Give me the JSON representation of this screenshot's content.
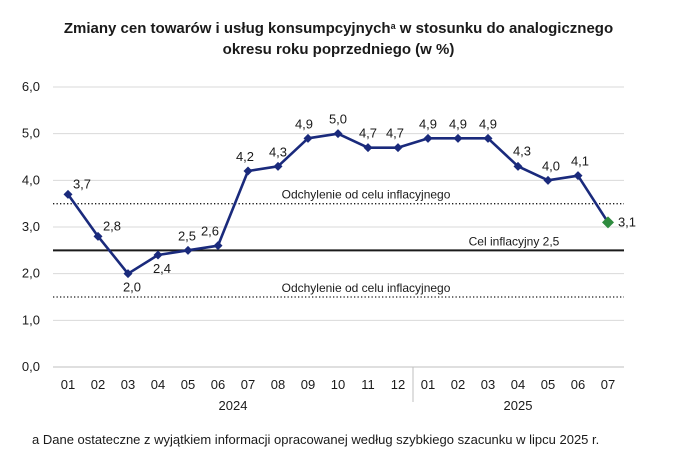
{
  "chart_data": {
    "type": "line",
    "title_main": "Zmiany cen towarów i usług konsumpcyjnych",
    "title_sup": "a",
    "title_rest": " w stosunku do analogicznego",
    "title_line2": "okresu roku poprzedniego (w %)",
    "footnote": "a Dane ostateczne z wyjątkiem informacji opracowanej według szybkiego szacunku w lipcu 2025 r.",
    "categories": [
      "01",
      "02",
      "03",
      "04",
      "05",
      "06",
      "07",
      "08",
      "09",
      "10",
      "11",
      "12",
      "01",
      "02",
      "03",
      "04",
      "05",
      "06",
      "07"
    ],
    "year_groups": [
      {
        "label": "2024",
        "start": 0,
        "end": 11
      },
      {
        "label": "2025",
        "start": 12,
        "end": 18
      }
    ],
    "values": [
      3.7,
      2.8,
      2.0,
      2.4,
      2.5,
      2.6,
      4.2,
      4.3,
      4.9,
      5.0,
      4.7,
      4.7,
      4.9,
      4.9,
      4.9,
      4.3,
      4.0,
      4.1,
      3.1
    ],
    "value_labels": [
      "3,7",
      "2,8",
      "2,0",
      "2,4",
      "2,5",
      "2,6",
      "4,2",
      "4,3",
      "4,9",
      "5,0",
      "4,7",
      "4,7",
      "4,9",
      "4,9",
      "4,9",
      "4,3",
      "4,0",
      "4,1",
      "3,1"
    ],
    "ylim": [
      0,
      6
    ],
    "yticks": [
      "0,0",
      "1,0",
      "2,0",
      "3,0",
      "4,0",
      "5,0",
      "6,0"
    ],
    "grid": true,
    "reference_lines": [
      {
        "value": 3.5,
        "label": "Odchylenie od celu inflacyjnego",
        "style": "dotted"
      },
      {
        "value": 2.5,
        "label": "Cel inflacyjny 2,5",
        "style": "solid"
      },
      {
        "value": 1.5,
        "label": "Odchylenie od celu inflacyjnego",
        "style": "dotted"
      }
    ],
    "colors": {
      "line": "#1a2a7c",
      "last_point": "#2e8b3e",
      "grid": "#d9d9d9",
      "reference": "#1a1a1a"
    }
  }
}
